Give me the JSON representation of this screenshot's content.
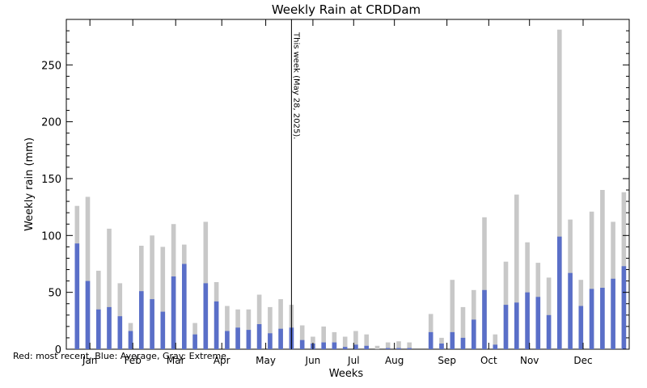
{
  "chart_data": {
    "type": "bar",
    "title": "Weekly Rain at CRDDam",
    "xlabel": "Weeks",
    "ylabel": "Weekly rain  (mm)",
    "ylim": [
      0,
      290
    ],
    "yticks": [
      0,
      50,
      100,
      150,
      200,
      250
    ],
    "xlim": [
      0,
      52.5
    ],
    "month_labels": [
      {
        "label": "Jan",
        "pos": 2.2
      },
      {
        "label": "Feb",
        "pos": 6.2
      },
      {
        "label": "Mar",
        "pos": 10.2
      },
      {
        "label": "Apr",
        "pos": 14.5
      },
      {
        "label": "May",
        "pos": 18.6
      },
      {
        "label": "Jun",
        "pos": 23.0
      },
      {
        "label": "Jul",
        "pos": 26.8
      },
      {
        "label": "Aug",
        "pos": 30.6
      },
      {
        "label": "Sep",
        "pos": 35.5
      },
      {
        "label": "Oct",
        "pos": 39.4
      },
      {
        "label": "Nov",
        "pos": 43.2
      },
      {
        "label": "Dec",
        "pos": 48.2
      }
    ],
    "current_week": {
      "pos": 21.0,
      "label": "This week (May 28, 2025)."
    },
    "legend_note": "Red: most recent, Blue: Average, Gray: Extreme",
    "series": [
      {
        "name": "Extreme",
        "color": "#c8c8c8",
        "values": [
          126,
          134,
          69,
          106,
          58,
          23,
          91,
          100,
          90,
          110,
          92,
          23,
          112,
          59,
          38,
          35,
          35,
          48,
          37,
          44,
          39,
          21,
          11,
          20,
          15,
          11,
          16,
          13,
          3,
          6,
          7,
          6,
          0,
          31,
          10,
          61,
          37,
          52,
          116,
          13,
          77,
          136,
          94,
          76,
          63,
          281,
          114,
          61,
          121,
          140,
          112,
          138
        ]
      },
      {
        "name": "Average",
        "color": "#5a6fc8",
        "values": [
          93,
          60,
          35,
          37,
          29,
          16,
          51,
          44,
          33,
          64,
          75,
          13,
          58,
          42,
          16,
          19,
          17,
          22,
          14,
          18,
          19,
          8,
          5,
          6,
          6,
          2,
          4,
          3,
          0,
          1,
          1,
          1,
          0,
          15,
          5,
          15,
          10,
          26,
          52,
          4,
          39,
          41,
          50,
          46,
          30,
          99,
          67,
          38,
          53,
          54,
          62,
          73
        ]
      }
    ]
  }
}
